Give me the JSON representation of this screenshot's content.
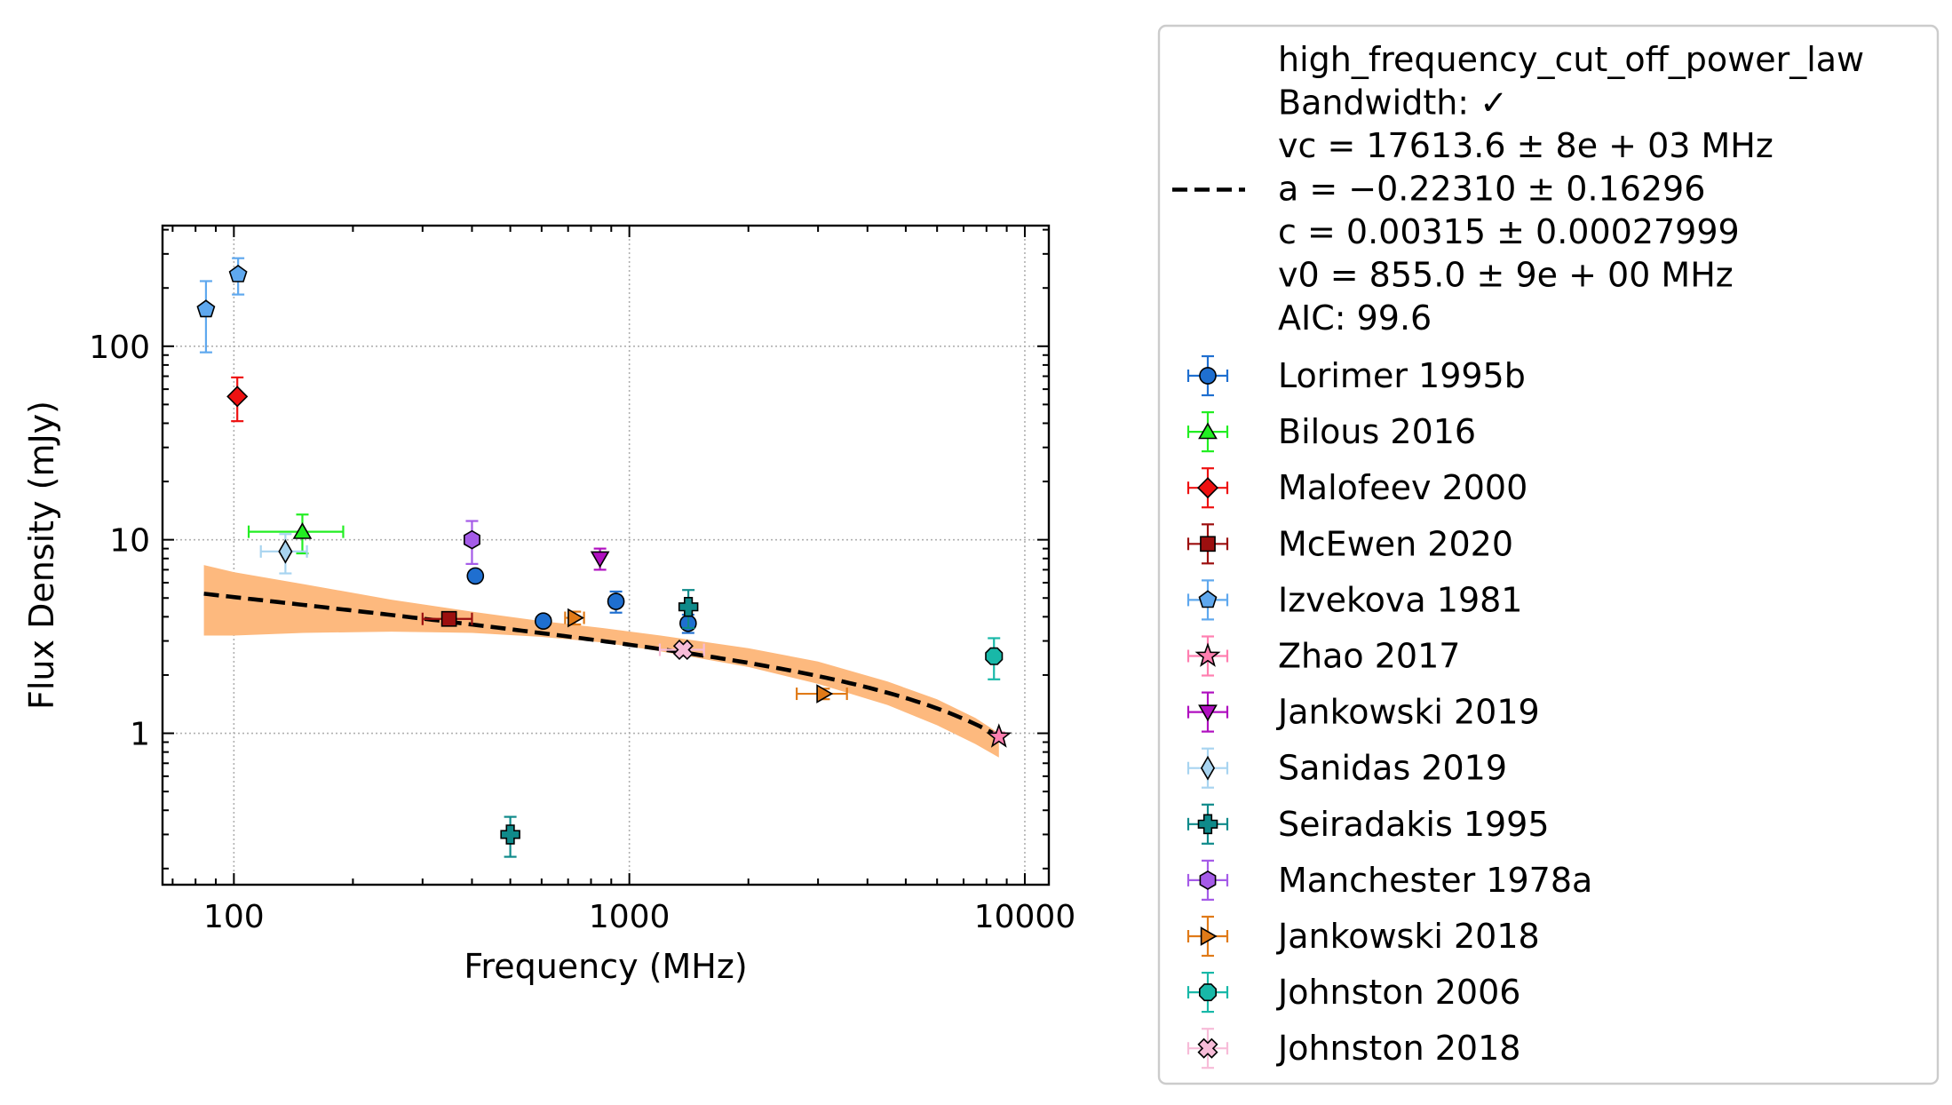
{
  "chart_data": {
    "type": "scatter",
    "title": "",
    "xlabel": "Frequency (MHz)",
    "ylabel": "Flux Density (mJy)",
    "xscale": "log",
    "yscale": "log",
    "xlim": [
      66,
      11500
    ],
    "ylim": [
      0.165,
      420
    ],
    "xticks": [
      {
        "value": 100,
        "label": "100"
      },
      {
        "value": 1000,
        "label": "1000"
      },
      {
        "value": 10000,
        "label": "10000"
      }
    ],
    "yticks": [
      {
        "value": 1,
        "label": "1"
      },
      {
        "value": 10,
        "label": "10"
      },
      {
        "value": 100,
        "label": "100"
      }
    ],
    "grid": true,
    "legend_position": "outside-right",
    "fit": {
      "label_lines": [
        "high_frequency_cut_off_power_law",
        "Bandwidth: ✓",
        "vc = 17613.6 ± 8e + 03 MHz",
        "a = −0.22310 ± 0.16296",
        "c = 0.00315 ± 0.00027999",
        "v0 = 855.0 ± 9e + 00 MHz",
        "AIC: 99.6"
      ],
      "model": "high_frequency_cut_off_power_law",
      "vc": 17613.6,
      "a": -0.2231,
      "c": 0.00315,
      "v0": 855.0,
      "x_range": [
        84,
        8600
      ],
      "color": "#000000",
      "band_color": "#fdb97e",
      "band_x": [
        84,
        100,
        150,
        250,
        400,
        600,
        855,
        1200,
        2000,
        3000,
        4500,
        6000,
        7500,
        8600
      ],
      "band_upper": [
        7.4,
        6.8,
        5.9,
        4.9,
        4.25,
        3.8,
        3.5,
        3.2,
        2.75,
        2.35,
        1.85,
        1.5,
        1.2,
        1.0
      ],
      "band_lower": [
        3.2,
        3.2,
        3.3,
        3.35,
        3.3,
        3.15,
        2.95,
        2.65,
        2.2,
        1.8,
        1.4,
        1.1,
        0.88,
        0.75
      ]
    },
    "series": [
      {
        "name": "Lorimer 1995b",
        "color": "#1f6fd0",
        "marker": "circle",
        "points": [
          {
            "x": 408,
            "y": 6.5,
            "yerr": 0.2
          },
          {
            "x": 606,
            "y": 3.8,
            "yerr": 0.2
          },
          {
            "x": 925,
            "y": 4.8,
            "yerr": 0.6
          },
          {
            "x": 1408,
            "y": 3.7,
            "yerr": 0.4
          }
        ]
      },
      {
        "name": "Bilous 2016",
        "color": "#22ee22",
        "marker": "triangle-up",
        "points": [
          {
            "x": 149,
            "y": 11.0,
            "yerr": 2.5,
            "xerr": [
              40,
              40
            ]
          }
        ]
      },
      {
        "name": "Malofeev 2000",
        "color": "#ee1111",
        "marker": "diamond",
        "points": [
          {
            "x": 102,
            "y": 55,
            "yerr": 14
          }
        ]
      },
      {
        "name": "McEwen 2020",
        "color": "#9c0f0f",
        "marker": "square",
        "points": [
          {
            "x": 350,
            "y": 3.9,
            "yerr": 0.2,
            "xerr": [
              50,
              50
            ]
          }
        ]
      },
      {
        "name": "Izvekova 1981",
        "color": "#5fa8ee",
        "marker": "pentagon",
        "points": [
          {
            "x": 85,
            "y": 155,
            "yerr": 62
          },
          {
            "x": 102.5,
            "y": 235,
            "yerr": 50
          }
        ]
      },
      {
        "name": "Zhao 2017",
        "color": "#ff7fb0",
        "marker": "star",
        "points": [
          {
            "x": 8600,
            "y": 0.96,
            "yerr": 0.05
          }
        ]
      },
      {
        "name": "Jankowski 2019",
        "color": "#b010c0",
        "marker": "triangle-down",
        "points": [
          {
            "x": 843,
            "y": 8.0,
            "yerr": 1.0
          }
        ]
      },
      {
        "name": "Sanidas 2019",
        "color": "#a8d4f0",
        "marker": "thin-diamond",
        "points": [
          {
            "x": 135,
            "y": 8.7,
            "yerr": 2.0,
            "xerr": [
              18,
              18
            ]
          }
        ]
      },
      {
        "name": "Seiradakis 1995",
        "color": "#0f8a8a",
        "marker": "plus",
        "points": [
          {
            "x": 500,
            "y": 0.3,
            "yerr": 0.07
          },
          {
            "x": 1410,
            "y": 4.5,
            "yerr": 1.0
          }
        ]
      },
      {
        "name": "Manchester 1978a",
        "color": "#a55be8",
        "marker": "hexagon",
        "points": [
          {
            "x": 400,
            "y": 10.0,
            "yerr": 2.5
          }
        ]
      },
      {
        "name": "Jankowski 2018",
        "color": "#e07a18",
        "marker": "triangle-right",
        "points": [
          {
            "x": 728,
            "y": 3.95,
            "yerr": 0.3,
            "xerr": [
              40,
              40
            ]
          },
          {
            "x": 3100,
            "y": 1.6,
            "yerr": 0.1,
            "xerr": [
              450,
              450
            ]
          }
        ]
      },
      {
        "name": "Johnston 2006",
        "color": "#18b8a8",
        "marker": "octagon",
        "points": [
          {
            "x": 8356,
            "y": 2.5,
            "yerr": 0.6
          }
        ]
      },
      {
        "name": "Johnston 2018",
        "color": "#f7bcd8",
        "marker": "x-filled",
        "points": [
          {
            "x": 1369,
            "y": 2.7,
            "yerr": 0.2,
            "xerr": [
              175,
              175
            ]
          }
        ]
      }
    ]
  }
}
